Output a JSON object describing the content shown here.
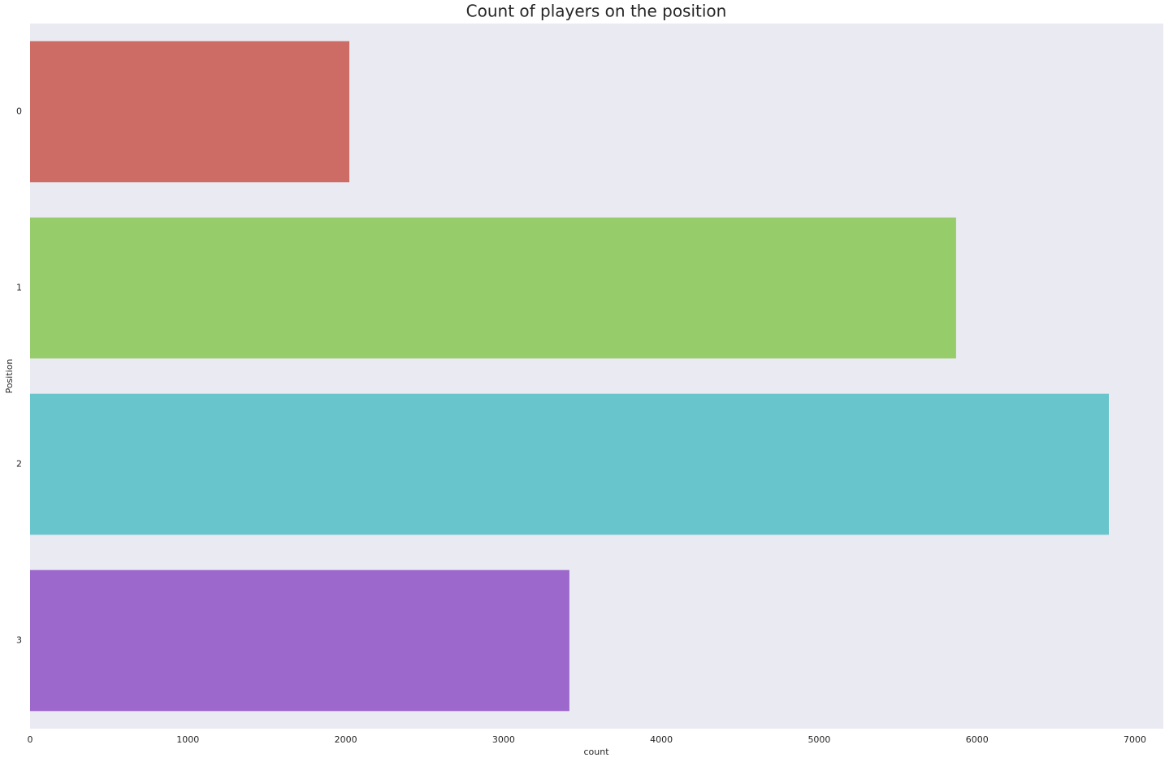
{
  "chart_data": {
    "type": "bar",
    "orientation": "horizontal",
    "title": "Count of players on the position",
    "x_label": "count",
    "y_label": "Position",
    "categories": [
      "0",
      "1",
      "2",
      "3"
    ],
    "values": [
      2023,
      5867,
      6835,
      3417
    ],
    "colors": [
      "#cc6c64",
      "#96cd6a",
      "#68c5cb",
      "#9d68cb"
    ],
    "xlim": [
      0,
      7180
    ],
    "xticks": [
      0,
      1000,
      2000,
      3000,
      4000,
      5000,
      6000,
      7000
    ],
    "grid": false
  }
}
